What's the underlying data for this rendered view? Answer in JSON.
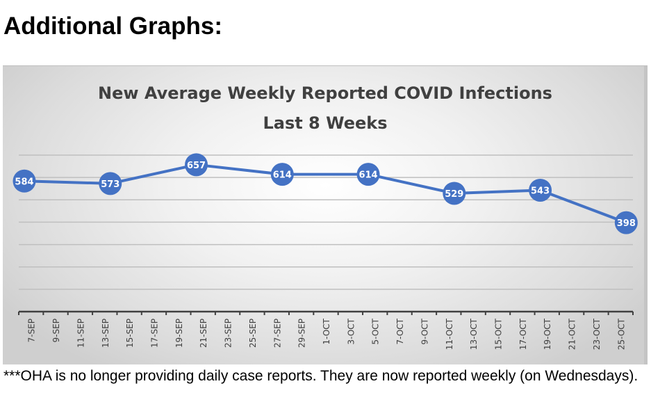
{
  "heading": "Additional Graphs:",
  "footnote": "***OHA is no longer providing daily case reports.  They are now reported weekly (on Wednesdays).",
  "colors": {
    "line": "#4472C4",
    "marker": "#4472C4",
    "label_text": "#ffffff",
    "title": "#404040",
    "grid": "#bfbfbf",
    "axis": "#404040"
  },
  "chart_data": {
    "type": "line",
    "title": "New Average Weekly Reported COVID Infections",
    "subtitle": "Last 8 Weeks",
    "xlabel": "",
    "ylabel": "",
    "ylim": [
      0,
      700
    ],
    "y_grid_step": 100,
    "grid": true,
    "legend": "none",
    "x_axis": {
      "start_day": 7,
      "end_day": 56,
      "tick_every_days": 2
    },
    "tick_labels": [
      "7-SEP",
      "9-SEP",
      "11-SEP",
      "13-SEP",
      "15-SEP",
      "17-SEP",
      "19-SEP",
      "21-SEP",
      "23-SEP",
      "25-SEP",
      "27-SEP",
      "29-SEP",
      "1-OCT",
      "3-OCT",
      "5-OCT",
      "7-OCT",
      "9-OCT",
      "11-OCT",
      "13-OCT",
      "15-OCT",
      "17-OCT",
      "19-OCT",
      "21-OCT",
      "23-OCT",
      "25-OCT"
    ],
    "series": [
      {
        "name": "New Average Weekly Reported COVID Infections",
        "x": [
          "7-SEP",
          "14-SEP",
          "21-SEP",
          "28-SEP",
          "5-OCT",
          "12-OCT",
          "19-OCT",
          "26-OCT"
        ],
        "x_day": [
          7,
          14,
          21,
          28,
          35,
          42,
          49,
          56
        ],
        "values": [
          584,
          573,
          657,
          614,
          614,
          529,
          543,
          398
        ],
        "data_labels": [
          "584",
          "573",
          "657",
          "614",
          "614",
          "529",
          "543",
          "398"
        ]
      }
    ]
  }
}
